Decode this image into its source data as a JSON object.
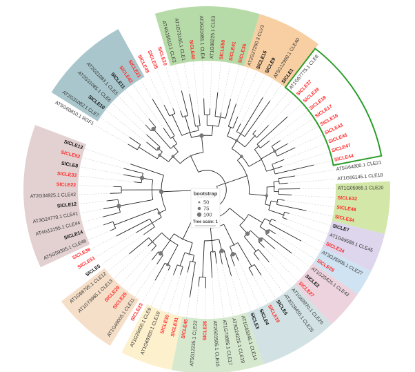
{
  "colors": {
    "red": "#ff2a2a",
    "black": "#111111",
    "gray": "#333333",
    "branch": "#222222",
    "node": "#777777",
    "dash": "#cccccc",
    "highlight_box": "#2a9d2a"
  },
  "leaves": [
    {
      "label": "AT5G60810.1 RGF1",
      "color": "gray"
    },
    {
      "label": "AT2G31082.1 CLE7",
      "color": "gray"
    },
    {
      "label": "SlCLE10",
      "color": "black"
    },
    {
      "label": "AT2G31085.1 CLE6",
      "color": "gray"
    },
    {
      "label": "AT2G31083.1 CLE5",
      "color": "gray"
    },
    {
      "label": "SlCLE11",
      "color": "black"
    },
    {
      "label": "SlCLE42",
      "color": "red"
    },
    {
      "label": "SlCLE21",
      "color": "red"
    },
    {
      "label": "SlCLE49",
      "color": "red"
    },
    {
      "label": "SlCLE35",
      "color": "red"
    },
    {
      "label": "SlCLE20",
      "color": "red"
    },
    {
      "label": "AT4G18510.1 CLE2",
      "color": "gray"
    },
    {
      "label": "AT1G73165.1 CLE1",
      "color": "gray"
    },
    {
      "label": "SlCLE40",
      "color": "red"
    },
    {
      "label": "AT2G31081.1 CLE4",
      "color": "gray"
    },
    {
      "label": "AT1G06225.1 CLE3",
      "color": "gray"
    },
    {
      "label": "SlCLE50",
      "color": "red"
    },
    {
      "label": "SlCLE41",
      "color": "red"
    },
    {
      "label": "SlCLE36",
      "color": "red"
    },
    {
      "label": "AT2G27250.3 CLV3",
      "color": "gray"
    },
    {
      "label": "SlCLE15",
      "color": "black"
    },
    {
      "label": "SlCLE9",
      "color": "black"
    },
    {
      "label": "AT5G12990.1 CLE40",
      "color": "gray"
    },
    {
      "label": "SlCLE1",
      "color": "black"
    },
    {
      "label": "AT1G67775.1 CLE8",
      "color": "gray"
    },
    {
      "label": "SlCLE37",
      "color": "red"
    },
    {
      "label": "SlCLE39",
      "color": "red"
    },
    {
      "label": "SlCLE18",
      "color": "red"
    },
    {
      "label": "SlCLE17",
      "color": "red"
    },
    {
      "label": "SlCLE16",
      "color": "red"
    },
    {
      "label": "SlCLE43",
      "color": "red"
    },
    {
      "label": "SlCLE46",
      "color": "red"
    },
    {
      "label": "SlCLE47",
      "color": "red"
    },
    {
      "label": "SlCLE44",
      "color": "red"
    },
    {
      "label": "AT5G64800.1 CLE21",
      "color": "gray"
    },
    {
      "label": "AT1G66145.1 CLE18",
      "color": "gray"
    },
    {
      "label": "AT1G05065.1 CLE20",
      "color": "gray"
    },
    {
      "label": "SlCLE32",
      "color": "red"
    },
    {
      "label": "SlCLE48",
      "color": "red"
    },
    {
      "label": "SlCLE34",
      "color": "red"
    },
    {
      "label": "SlCLE7",
      "color": "black"
    },
    {
      "label": "AT1G69588.1 CLE45",
      "color": "gray"
    },
    {
      "label": "SlCLE24",
      "color": "red"
    },
    {
      "label": "AT3G25905.1 CLE27",
      "color": "gray"
    },
    {
      "label": "SlCLE28",
      "color": "red"
    },
    {
      "label": "AT1G25425.1 CLE43",
      "color": "gray"
    },
    {
      "label": "SlCLE2",
      "color": "black"
    },
    {
      "label": "SlCLE27",
      "color": "red"
    },
    {
      "label": "AT1G69970.1 CLE26",
      "color": "gray"
    },
    {
      "label": "AT3G28455.1 CLE25",
      "color": "gray"
    },
    {
      "label": "SlCLE6",
      "color": "black"
    },
    {
      "label": "SlCLE19",
      "color": "red"
    },
    {
      "label": "SlCLE4",
      "color": "black"
    },
    {
      "label": "SlCLE3",
      "color": "black"
    },
    {
      "label": "AT1G63245.1 CLE14",
      "color": "gray"
    },
    {
      "label": "AT3G24225.1 CLE19",
      "color": "gray"
    },
    {
      "label": "AT1G70895.1 CLE17",
      "color": "gray"
    },
    {
      "label": "AT2G01505.1 CLE16",
      "color": "gray"
    },
    {
      "label": "SlCLE26",
      "color": "red"
    },
    {
      "label": "AT5G12235.1 CLE22",
      "color": "gray"
    },
    {
      "label": "SlCLE45",
      "color": "red"
    },
    {
      "label": "SlCLE31",
      "color": "red"
    },
    {
      "label": "SlCLE30",
      "color": "red"
    },
    {
      "label": "AT1G69320.1 CLE10",
      "color": "gray"
    },
    {
      "label": "AT1G26600.1 CLE9",
      "color": "gray"
    },
    {
      "label": "SlCLE23",
      "color": "red"
    },
    {
      "label": "AT1G49005.1 CLE11",
      "color": "gray"
    },
    {
      "label": "SlCLE25",
      "color": "red"
    },
    {
      "label": "SlCLE29",
      "color": "red"
    },
    {
      "label": "AT1G73965.1 CLE13",
      "color": "gray"
    },
    {
      "label": "AT1G66795.1 CLE12",
      "color": "gray"
    },
    {
      "label": "SlCLE5",
      "color": "black"
    },
    {
      "label": "SlCLE51",
      "color": "red"
    },
    {
      "label": "SlCLE38",
      "color": "red"
    },
    {
      "label": "AT5G59305.1 CLE46",
      "color": "gray"
    },
    {
      "label": "SlCLE14",
      "color": "black"
    },
    {
      "label": "AT4G13195.1 CLE44",
      "color": "gray"
    },
    {
      "label": "AT3G24770.1 CLE41",
      "color": "gray"
    },
    {
      "label": "SlCLE12",
      "color": "black"
    },
    {
      "label": "AT2G34925.1 CLE42",
      "color": "gray"
    },
    {
      "label": "SlCLE22",
      "color": "red"
    },
    {
      "label": "SlCLE33",
      "color": "red"
    },
    {
      "label": "SlCLE8",
      "color": "black"
    },
    {
      "label": "SlCLE52",
      "color": "red"
    },
    {
      "label": "SlCLE13",
      "color": "black"
    }
  ],
  "clade_bands": [
    {
      "name": "clade-cle5-7",
      "from": 1,
      "to": 7,
      "color": "#a8c6cc"
    },
    {
      "name": "clade-cle1-4",
      "from": 11,
      "to": 18,
      "color": "#b7dba8"
    },
    {
      "name": "clade-clv3",
      "from": 19,
      "to": 23,
      "color": "#f8cfa3"
    },
    {
      "name": "clade-cle20",
      "from": 36,
      "to": 39,
      "color": "#d3e8a8"
    },
    {
      "name": "clade-cle45",
      "from": 40,
      "to": 42,
      "color": "#ddd6ec"
    },
    {
      "name": "clade-cle27",
      "from": 43,
      "to": 44,
      "color": "#d0e3f2"
    },
    {
      "name": "clade-cle43",
      "from": 45,
      "to": 47,
      "color": "#ecd3dd"
    },
    {
      "name": "clade-cle25-26",
      "from": 48,
      "to": 53,
      "color": "#d2e2e4"
    },
    {
      "name": "clade-cle14-22",
      "from": 54,
      "to": 60,
      "color": "#d6e9cf"
    },
    {
      "name": "clade-cle9-10",
      "from": 61,
      "to": 64,
      "color": "#fdf0cc"
    },
    {
      "name": "clade-cle11-13",
      "from": 66,
      "to": 70,
      "color": "#f6dfc8"
    },
    {
      "name": "clade-tdif",
      "from": 74,
      "to": 84,
      "color": "#e3d1d1"
    }
  ],
  "highlight_box": {
    "from": 24,
    "to": 33
  },
  "legend": {
    "title": "bootstrap",
    "items": [
      {
        "label": "50",
        "value": 50
      },
      {
        "label": "75",
        "value": 75
      },
      {
        "label": "100",
        "value": 100
      }
    ],
    "scale_label": "Tree scale: 1"
  }
}
